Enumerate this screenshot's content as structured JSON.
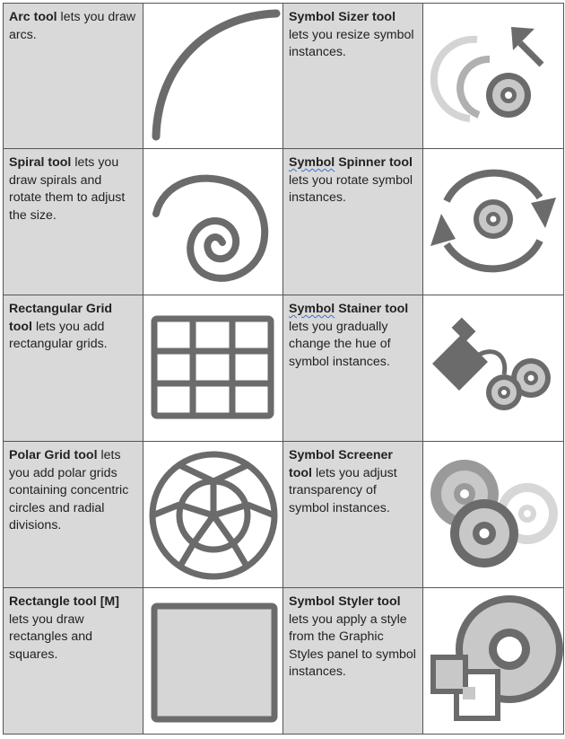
{
  "rows": [
    {
      "left": {
        "name": "Arc tool",
        "desc": " lets you draw arcs.",
        "icon": "arc-tool-icon"
      },
      "right": {
        "name_parts": [
          "Symbol",
          " Sizer tool"
        ],
        "squiggle": false,
        "desc": " lets you resize symbol instances.",
        "icon": "symbol-sizer-icon"
      }
    },
    {
      "left": {
        "name": "Spiral tool",
        "desc": " lets you draw spirals and rotate them to adjust the size.",
        "icon": "spiral-tool-icon"
      },
      "right": {
        "name_parts": [
          "Symbol",
          " Spinner tool"
        ],
        "squiggle": true,
        "desc": " lets you rotate symbol instances.",
        "icon": "symbol-spinner-icon"
      }
    },
    {
      "left": {
        "name": "Rectangular Grid tool",
        "desc": " lets you add rectangular grids.",
        "icon": "rectangular-grid-icon"
      },
      "right": {
        "name_parts": [
          "Symbol",
          " Stainer tool"
        ],
        "squiggle": true,
        "desc": " lets you gradually change the hue of symbol instances.",
        "icon": "symbol-stainer-icon"
      }
    },
    {
      "left": {
        "name": "Polar Grid tool",
        "desc": " lets you add polar grids containing concentric circles and radial divisions.",
        "icon": "polar-grid-icon"
      },
      "right": {
        "name_parts": [
          "Symbol",
          " Screener tool"
        ],
        "squiggle": false,
        "desc": " lets you adjust transparency of symbol instances.",
        "icon": "symbol-screener-icon"
      }
    },
    {
      "left": {
        "name": "Rectangle tool [M]",
        "desc": " lets you draw rectangles and squares.",
        "icon": "rectangle-tool-icon"
      },
      "right": {
        "name_parts": [
          "Symbol",
          " Styler tool"
        ],
        "squiggle": false,
        "desc": " lets you apply a style from the Graphic Styles panel to symbol instances.",
        "icon": "symbol-styler-icon"
      }
    }
  ],
  "colors": {
    "icon_dark": "#6b6b6b",
    "icon_mid": "#9a9a9a",
    "icon_light": "#c8c8c8",
    "cell_bg": "#d9d9d9"
  }
}
